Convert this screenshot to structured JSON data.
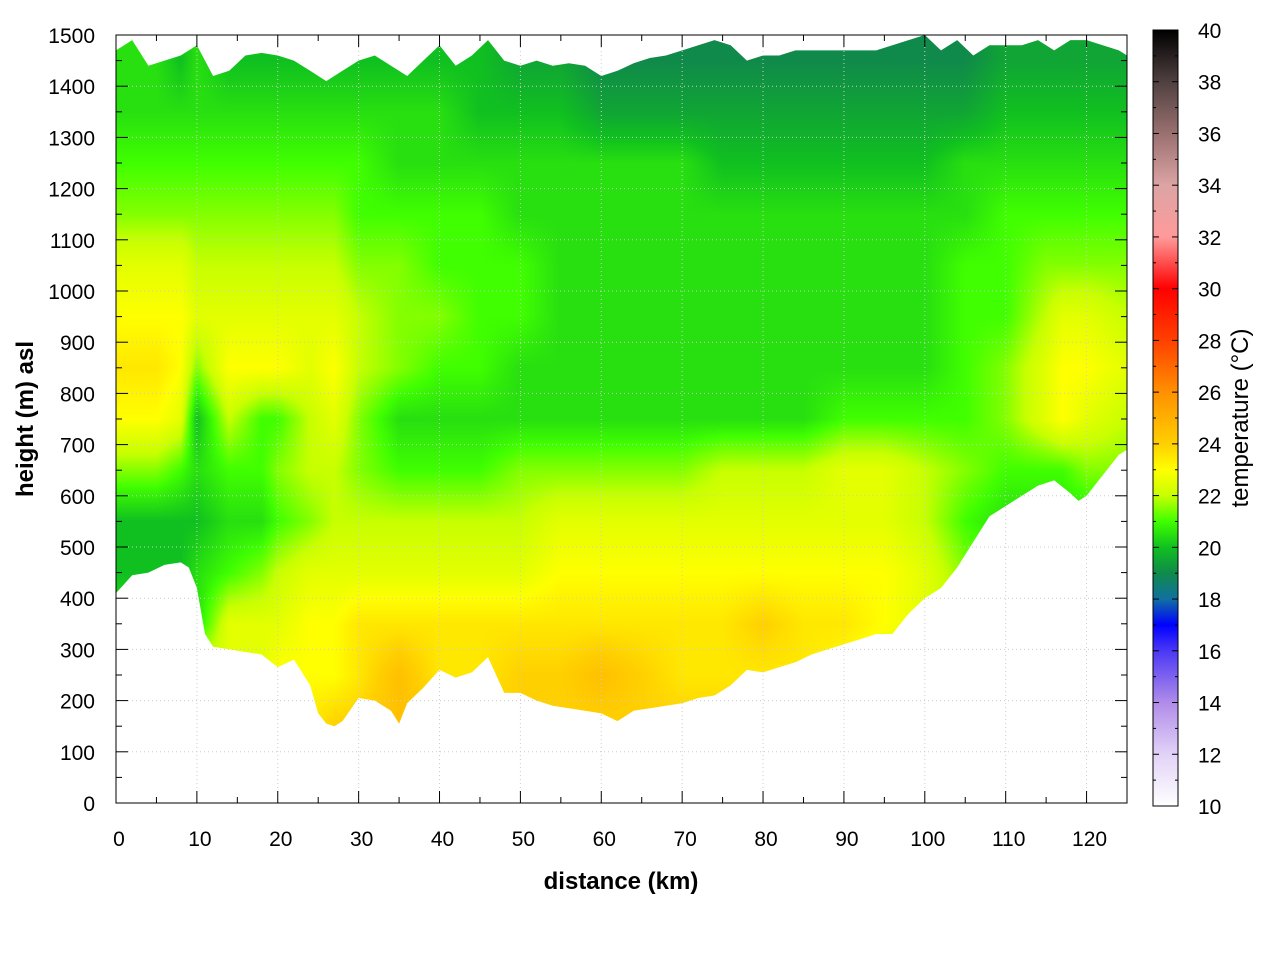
{
  "chart_data": {
    "type": "heatmap",
    "title": "",
    "xlabel": "distance (km)",
    "ylabel": "height (m) asl",
    "colorbar_label": "temperature (°C)",
    "xlim": [
      0,
      125
    ],
    "ylim": [
      0,
      1500
    ],
    "zlim": [
      10,
      40
    ],
    "x_ticks": [
      0,
      10,
      20,
      30,
      40,
      50,
      60,
      70,
      80,
      90,
      100,
      110,
      120
    ],
    "y_ticks": [
      0,
      100,
      200,
      300,
      400,
      500,
      600,
      700,
      800,
      900,
      1000,
      1100,
      1200,
      1300,
      1400,
      1500
    ],
    "colorbar_ticks": [
      10,
      12,
      14,
      16,
      18,
      20,
      22,
      24,
      26,
      28,
      30,
      32,
      34,
      36,
      38,
      40
    ],
    "grid": true,
    "grid_color": "#cccccc",
    "colormap": [
      {
        "value": 10,
        "color": "#ffffff"
      },
      {
        "value": 12,
        "color": "#e2d2f7"
      },
      {
        "value": 14,
        "color": "#b08ce9"
      },
      {
        "value": 16,
        "color": "#4b38f5"
      },
      {
        "value": 17,
        "color": "#0000ff"
      },
      {
        "value": 18,
        "color": "#1070a0"
      },
      {
        "value": 19,
        "color": "#108a4a"
      },
      {
        "value": 20,
        "color": "#10c020"
      },
      {
        "value": 21,
        "color": "#40ff00"
      },
      {
        "value": 22,
        "color": "#c8ff00"
      },
      {
        "value": 23,
        "color": "#ffff00"
      },
      {
        "value": 24,
        "color": "#ffd000"
      },
      {
        "value": 26,
        "color": "#ff9000"
      },
      {
        "value": 28,
        "color": "#ff4000"
      },
      {
        "value": 30,
        "color": "#ff0000"
      },
      {
        "value": 32,
        "color": "#ff9a9a"
      },
      {
        "value": 34,
        "color": "#dca4a4"
      },
      {
        "value": 36,
        "color": "#9a7070"
      },
      {
        "value": 38,
        "color": "#504040"
      },
      {
        "value": 40,
        "color": "#000000"
      }
    ],
    "terrain_bottom": {
      "x": [
        0,
        2,
        4,
        6,
        8,
        9,
        10,
        11,
        12,
        14,
        16,
        18,
        20,
        22,
        24,
        25,
        26,
        27,
        28,
        30,
        32,
        34,
        35,
        36,
        38,
        40,
        42,
        44,
        46,
        48,
        50,
        52,
        54,
        56,
        58,
        60,
        62,
        64,
        66,
        68,
        70,
        72,
        74,
        76,
        78,
        80,
        82,
        84,
        86,
        88,
        90,
        92,
        94,
        96,
        98,
        100,
        102,
        104,
        106,
        108,
        110,
        112,
        114,
        116,
        118,
        119,
        120,
        122,
        124,
        125
      ],
      "y": [
        410,
        445,
        450,
        465,
        470,
        460,
        420,
        330,
        305,
        300,
        295,
        290,
        265,
        280,
        230,
        175,
        155,
        150,
        160,
        205,
        200,
        180,
        155,
        195,
        225,
        260,
        245,
        255,
        285,
        215,
        215,
        200,
        190,
        185,
        180,
        175,
        160,
        180,
        185,
        190,
        195,
        205,
        210,
        230,
        260,
        255,
        265,
        275,
        290,
        300,
        310,
        320,
        330,
        330,
        370,
        400,
        420,
        460,
        510,
        560,
        580,
        600,
        620,
        630,
        605,
        590,
        600,
        640,
        680,
        690
      ]
    },
    "terrain_top": {
      "x": [
        0,
        2,
        4,
        6,
        8,
        10,
        12,
        14,
        16,
        18,
        20,
        22,
        24,
        26,
        28,
        30,
        32,
        34,
        36,
        38,
        40,
        42,
        44,
        46,
        48,
        50,
        52,
        54,
        56,
        58,
        60,
        62,
        64,
        66,
        68,
        70,
        72,
        74,
        76,
        78,
        80,
        82,
        84,
        86,
        88,
        90,
        92,
        94,
        96,
        98,
        100,
        102,
        104,
        106,
        108,
        110,
        112,
        114,
        116,
        118,
        120,
        122,
        124,
        125
      ],
      "y": [
        1470,
        1490,
        1440,
        1450,
        1460,
        1480,
        1420,
        1430,
        1460,
        1465,
        1460,
        1450,
        1430,
        1410,
        1430,
        1450,
        1460,
        1440,
        1420,
        1450,
        1480,
        1440,
        1460,
        1490,
        1450,
        1440,
        1450,
        1440,
        1445,
        1440,
        1420,
        1430,
        1445,
        1455,
        1460,
        1470,
        1480,
        1490,
        1480,
        1450,
        1460,
        1460,
        1470,
        1470,
        1470,
        1470,
        1470,
        1470,
        1480,
        1490,
        1500,
        1470,
        1490,
        1460,
        1480,
        1480,
        1480,
        1490,
        1470,
        1490,
        1490,
        1480,
        1470,
        1460
      ]
    },
    "temperature_field": {
      "x": [
        0,
        5,
        8,
        10,
        14,
        18,
        20,
        24,
        27,
        30,
        35,
        40,
        45,
        50,
        55,
        60,
        65,
        70,
        75,
        80,
        85,
        90,
        95,
        100,
        105,
        110,
        115,
        117,
        120,
        125
      ],
      "y": [
        150,
        250,
        350,
        450,
        550,
        650,
        750,
        850,
        950,
        1050,
        1150,
        1250,
        1350,
        1450
      ],
      "values_by_height": [
        [
          22.5,
          22.5,
          22.5,
          22.5,
          22.5,
          22.5,
          23.0,
          23.5,
          24.0,
          24.0,
          24.5,
          24.0,
          24.0,
          24.0,
          24.0,
          24.0,
          24.0,
          24.0,
          24.0,
          24.0,
          24.0,
          23.5,
          23.0,
          22.5,
          22.0,
          21.5,
          21.0,
          21.0,
          21.0,
          21.0
        ],
        [
          22.5,
          22.5,
          22.5,
          22.5,
          22.5,
          22.5,
          23.0,
          23.0,
          23.0,
          23.5,
          24.5,
          23.5,
          23.5,
          24.0,
          24.0,
          24.5,
          24.0,
          23.5,
          23.5,
          23.5,
          23.5,
          23.0,
          22.5,
          22.0,
          21.5,
          21.0,
          21.0,
          21.0,
          21.0,
          21.0
        ],
        [
          20.5,
          20.5,
          20.5,
          20.5,
          22.5,
          22.5,
          22.5,
          23.0,
          23.0,
          23.5,
          23.5,
          23.5,
          23.5,
          23.5,
          23.5,
          23.5,
          23.5,
          23.5,
          23.5,
          24.0,
          23.5,
          23.5,
          23.0,
          22.5,
          22.0,
          21.5,
          21.0,
          21.0,
          21.0,
          21.0
        ],
        [
          20.0,
          20.0,
          20.0,
          20.5,
          21.0,
          21.5,
          22.0,
          22.5,
          22.5,
          22.5,
          22.5,
          22.5,
          22.5,
          22.5,
          23.0,
          23.0,
          23.0,
          23.0,
          23.0,
          23.0,
          23.0,
          23.0,
          23.0,
          22.5,
          21.5,
          21.0,
          20.5,
          20.5,
          20.5,
          20.5
        ],
        [
          20.0,
          20.0,
          20.0,
          20.0,
          20.5,
          20.5,
          21.0,
          21.5,
          22.0,
          22.0,
          22.0,
          22.0,
          22.0,
          22.0,
          22.5,
          22.5,
          22.5,
          22.5,
          22.5,
          22.5,
          22.5,
          22.5,
          22.5,
          22.0,
          21.0,
          20.5,
          20.5,
          20.5,
          20.5,
          20.5
        ],
        [
          21.5,
          21.5,
          21.0,
          20.5,
          21.0,
          21.0,
          21.5,
          22.0,
          22.0,
          21.5,
          21.0,
          21.0,
          21.0,
          21.5,
          21.5,
          21.5,
          21.5,
          21.5,
          22.0,
          22.0,
          22.0,
          22.5,
          22.5,
          22.0,
          21.5,
          21.0,
          21.0,
          21.0,
          21.5,
          21.5
        ],
        [
          23.0,
          23.0,
          22.5,
          20.0,
          22.0,
          21.0,
          21.0,
          22.0,
          22.5,
          21.5,
          20.5,
          20.5,
          20.5,
          20.5,
          20.5,
          20.5,
          20.5,
          20.5,
          20.5,
          20.5,
          20.5,
          21.0,
          21.0,
          21.0,
          21.0,
          21.5,
          22.5,
          23.0,
          22.5,
          22.0
        ],
        [
          23.5,
          23.5,
          23.0,
          21.5,
          23.0,
          23.0,
          23.0,
          22.5,
          23.0,
          22.0,
          21.5,
          21.0,
          21.0,
          20.5,
          20.5,
          20.5,
          20.5,
          20.5,
          20.5,
          20.5,
          20.5,
          20.5,
          20.5,
          20.5,
          21.0,
          21.5,
          22.5,
          23.0,
          23.0,
          22.5
        ],
        [
          23.0,
          23.0,
          23.0,
          22.5,
          22.5,
          22.5,
          22.5,
          22.5,
          22.5,
          22.0,
          21.5,
          21.5,
          21.0,
          21.0,
          20.5,
          20.5,
          20.5,
          20.5,
          20.5,
          20.5,
          20.5,
          20.5,
          20.5,
          20.5,
          21.0,
          21.0,
          22.0,
          22.5,
          22.5,
          22.0
        ],
        [
          22.5,
          22.5,
          22.5,
          22.0,
          22.0,
          22.0,
          22.0,
          22.0,
          22.0,
          21.5,
          21.5,
          21.0,
          21.0,
          21.0,
          20.5,
          20.5,
          20.5,
          20.5,
          20.5,
          20.5,
          20.5,
          20.5,
          20.5,
          20.5,
          21.0,
          21.0,
          21.5,
          21.5,
          21.5,
          21.5
        ],
        [
          21.5,
          21.5,
          21.5,
          21.5,
          21.5,
          21.5,
          21.5,
          21.5,
          21.5,
          21.0,
          21.0,
          21.0,
          21.0,
          20.5,
          20.5,
          20.5,
          20.5,
          20.5,
          20.5,
          20.5,
          20.5,
          20.5,
          20.5,
          20.5,
          20.5,
          21.0,
          21.0,
          21.0,
          21.0,
          21.0
        ],
        [
          21.0,
          21.0,
          21.0,
          21.0,
          21.0,
          21.0,
          21.0,
          21.0,
          21.0,
          21.0,
          20.5,
          20.5,
          20.5,
          20.5,
          20.5,
          20.5,
          20.5,
          20.5,
          20.0,
          20.0,
          20.0,
          20.0,
          20.0,
          20.0,
          20.5,
          20.5,
          20.5,
          20.5,
          20.5,
          20.5
        ],
        [
          20.5,
          20.5,
          20.5,
          20.5,
          20.5,
          20.5,
          20.5,
          20.5,
          20.5,
          20.5,
          20.5,
          20.5,
          20.0,
          20.0,
          20.0,
          19.5,
          19.5,
          19.5,
          19.5,
          19.5,
          19.5,
          19.5,
          19.5,
          19.5,
          19.5,
          20.0,
          20.0,
          20.0,
          20.0,
          20.0
        ],
        [
          20.5,
          20.5,
          20.0,
          20.5,
          20.0,
          20.0,
          20.0,
          20.0,
          20.0,
          20.0,
          20.0,
          20.0,
          20.0,
          19.5,
          19.5,
          19.0,
          19.0,
          19.0,
          19.0,
          19.0,
          19.0,
          19.0,
          19.0,
          19.0,
          19.0,
          19.5,
          19.5,
          19.5,
          19.5,
          19.5
        ]
      ]
    }
  }
}
